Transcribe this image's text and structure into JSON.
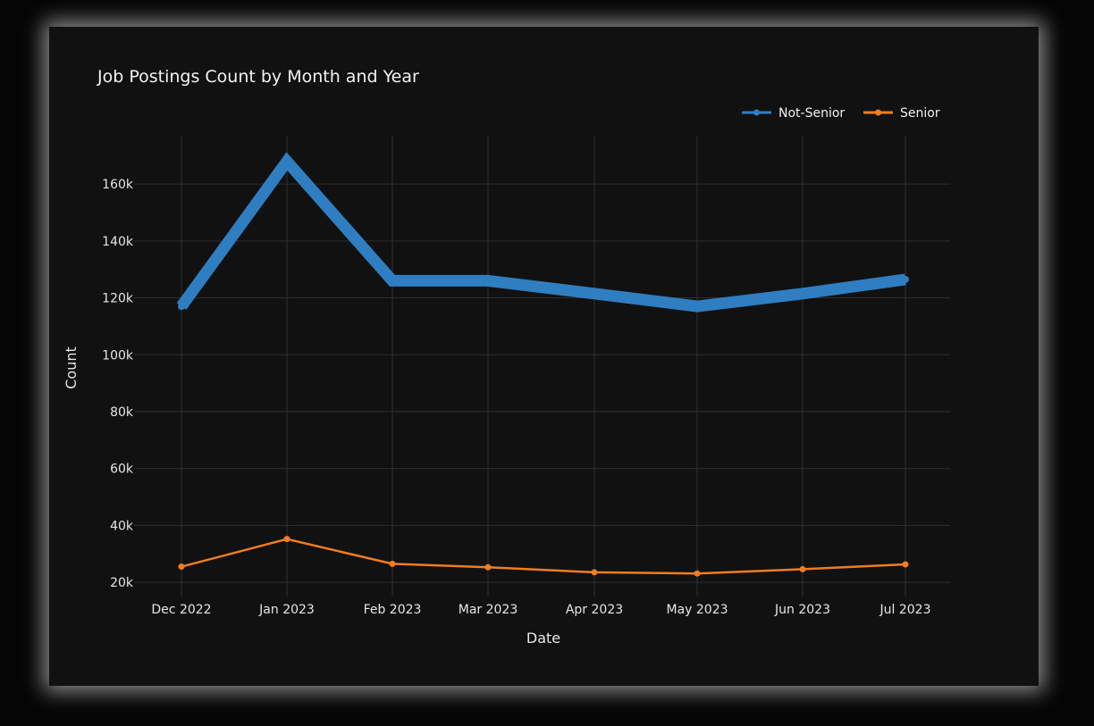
{
  "chart_data": {
    "type": "line",
    "title": "Job Postings Count by Month and Year",
    "xlabel": "Date",
    "ylabel": "Count",
    "categories": [
      "Dec 2022",
      "Jan 2023",
      "Feb 2023",
      "Mar 2023",
      "Apr 2023",
      "May 2023",
      "Jun 2023",
      "Jul 2023"
    ],
    "y_ticks": [
      20000,
      40000,
      60000,
      80000,
      100000,
      120000,
      140000,
      160000
    ],
    "y_tick_labels": [
      "20k",
      "40k",
      "60k",
      "80k",
      "100k",
      "120k",
      "140k",
      "160k"
    ],
    "ylim": [
      15000,
      177000
    ],
    "grid": true,
    "legend_position": "top-right",
    "series": [
      {
        "name": "Not-Senior",
        "color": "#2f7ec1",
        "values": [
          117000,
          168000,
          126000,
          126000,
          121500,
          117000,
          121500,
          126500
        ]
      },
      {
        "name": "Senior",
        "color": "#ef7d22",
        "values": [
          25500,
          35200,
          26500,
          25300,
          23500,
          23100,
          24600,
          26300
        ]
      }
    ]
  }
}
